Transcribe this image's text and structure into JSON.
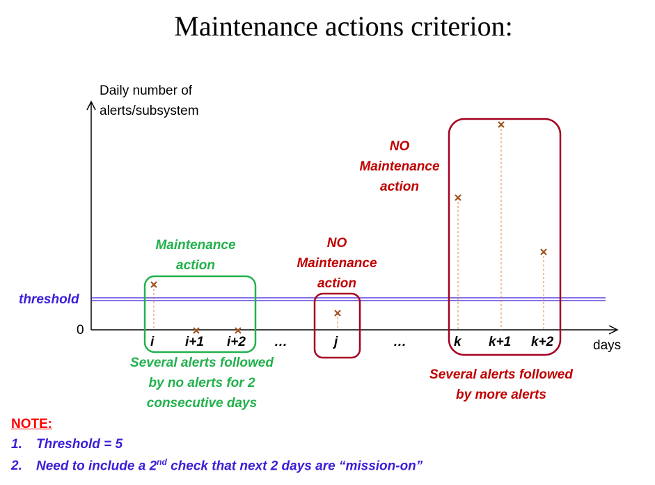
{
  "title": "Maintenance actions criterion:",
  "axes": {
    "ylabel_line1": "Daily number of",
    "ylabel_line2": "alerts/subsystem",
    "xlabel": "days",
    "zero": "0",
    "threshold_label": "threshold"
  },
  "ticks": [
    "i",
    "i+1",
    "i+2",
    "…",
    "j",
    "…",
    "k",
    "k+1",
    "k+2"
  ],
  "groups": {
    "left": {
      "header_line1": "Maintenance",
      "header_line2": "action",
      "caption_line1": "Several alerts followed",
      "caption_line2": "by no alerts for 2",
      "caption_line3": "consecutive days"
    },
    "middle": {
      "header_line1": "NO",
      "header_line2": "Maintenance",
      "header_line3": "action"
    },
    "right": {
      "header_line1": "NO",
      "header_line2": "Maintenance",
      "header_line3": "action",
      "caption_line1": "Several alerts followed",
      "caption_line2": "by more alerts"
    }
  },
  "note": {
    "title": "NOTE:",
    "item1_num": "1.",
    "item1_text": "Threshold = 5",
    "item2_num": "2.",
    "item2_before": "Need to include a 2",
    "item2_sup": "nd",
    "item2_after": " check that next 2 days are “mission-on”"
  },
  "colors": {
    "green": "#22b14c",
    "red": "#c00000",
    "blue": "#3a1fd6",
    "marker": "#a0521d"
  }
}
